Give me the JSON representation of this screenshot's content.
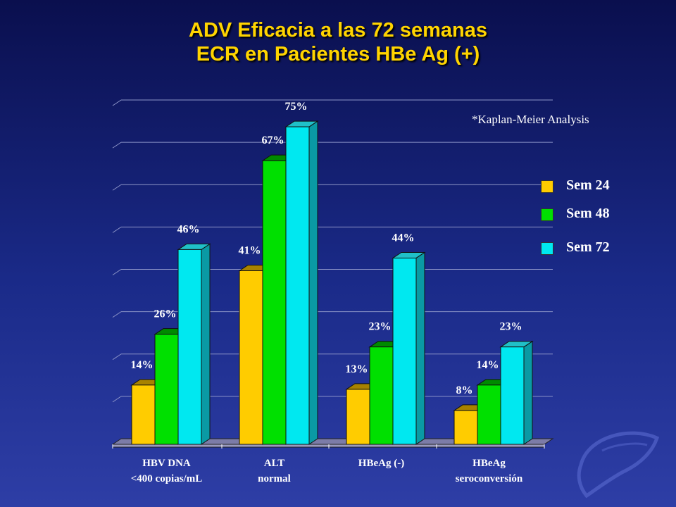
{
  "title": {
    "line1": "ADV Eficacia a las 72 semanas",
    "line2": "ECR en Pacientes HBe Ag (+)"
  },
  "note": "*Kaplan-Meier Analysis",
  "colors": {
    "sem24": "#ffcc00",
    "sem48": "#00e000",
    "sem72": "#00e8f0",
    "title": "#ffd400"
  },
  "chart_data": {
    "type": "bar",
    "categories": [
      [
        "HBV DNA",
        "<400 copias/mL"
      ],
      [
        "ALT",
        "normal"
      ],
      [
        "HBeAg (-)",
        ""
      ],
      [
        "HBeAg",
        "seroconversión"
      ]
    ],
    "series": [
      {
        "name": "Sem 24",
        "values": [
          14,
          41,
          13,
          8
        ],
        "labels": [
          "14%",
          "41%",
          "13%",
          "8%"
        ]
      },
      {
        "name": "Sem 48",
        "values": [
          26,
          67,
          23,
          14
        ],
        "labels": [
          "26%",
          "67%",
          "23%",
          "14%"
        ]
      },
      {
        "name": "Sem 72",
        "values": [
          46,
          75,
          44,
          23
        ],
        "labels": [
          "46%",
          "75%",
          "44%",
          "23%"
        ]
      }
    ],
    "ylim": [
      0,
      80
    ],
    "grid": true,
    "legend_position": "right",
    "three_d": true
  }
}
